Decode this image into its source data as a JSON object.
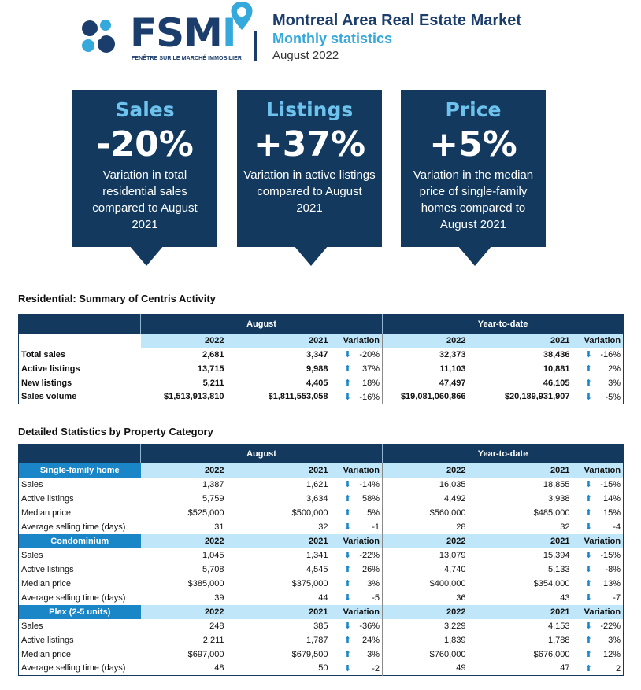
{
  "header": {
    "logo_text": "FSM",
    "logo_i": "I",
    "logo_subtitle": "FENÊTRE SUR LE MARCHÉ IMMOBILIER",
    "title": "Montreal Area Real Estate Market",
    "subtitle": "Monthly statistics",
    "date": "August 2022",
    "colors": {
      "navy": "#1b3d6b",
      "accent": "#35a8dc"
    }
  },
  "cards": [
    {
      "title": "Sales",
      "value": "-20%",
      "desc": "Variation in total residential sales compared to August 2021"
    },
    {
      "title": "Listings",
      "value": "+37%",
      "desc": "Variation in active listings compared to August 2021"
    },
    {
      "title": "Price",
      "value": "+5%",
      "desc": "Variation in the median price of single-family homes compared to August 2021"
    }
  ],
  "summary": {
    "title": "Residential: Summary of Centris Activity",
    "period_month": "August",
    "period_ytd": "Year-to-date",
    "col_2022": "2022",
    "col_2021": "2021",
    "col_var": "Variation",
    "rows": [
      {
        "label": "Total sales",
        "m22": "2,681",
        "m21": "3,347",
        "mdir": "down",
        "mvar": "-20%",
        "y22": "32,373",
        "y21": "38,436",
        "ydir": "down",
        "yvar": "-16%"
      },
      {
        "label": "Active listings",
        "m22": "13,715",
        "m21": "9,988",
        "mdir": "up",
        "mvar": "37%",
        "y22": "11,103",
        "y21": "10,881",
        "ydir": "up",
        "yvar": "2%"
      },
      {
        "label": "New listings",
        "m22": "5,211",
        "m21": "4,405",
        "mdir": "up",
        "mvar": "18%",
        "y22": "47,497",
        "y21": "46,105",
        "ydir": "up",
        "yvar": "3%"
      },
      {
        "label": "Sales volume",
        "m22": "$1,513,913,810",
        "m21": "$1,811,553,058",
        "mdir": "down",
        "mvar": "-16%",
        "y22": "$19,081,060,866",
        "y21": "$20,189,931,907",
        "ydir": "down",
        "yvar": "-5%"
      }
    ]
  },
  "detailed": {
    "title": "Detailed Statistics by Property Category",
    "period_month": "August",
    "period_ytd": "Year-to-date",
    "col_2022": "2022",
    "col_2021": "2021",
    "col_var": "Variation",
    "categories": [
      {
        "name": "Single-family home",
        "rows": [
          {
            "label": "Sales",
            "m22": "1,387",
            "m21": "1,621",
            "mdir": "down",
            "mvar": "-14%",
            "y22": "16,035",
            "y21": "18,855",
            "ydir": "down",
            "yvar": "-15%"
          },
          {
            "label": "Active listings",
            "m22": "5,759",
            "m21": "3,634",
            "mdir": "up",
            "mvar": "58%",
            "y22": "4,492",
            "y21": "3,938",
            "ydir": "up",
            "yvar": "14%"
          },
          {
            "label": "Median price",
            "m22": "$525,000",
            "m21": "$500,000",
            "mdir": "up",
            "mvar": "5%",
            "y22": "$560,000",
            "y21": "$485,000",
            "ydir": "up",
            "yvar": "15%"
          },
          {
            "label": "Average selling time (days)",
            "m22": "31",
            "m21": "32",
            "mdir": "down",
            "mvar": "-1",
            "y22": "28",
            "y21": "32",
            "ydir": "down",
            "yvar": "-4"
          }
        ]
      },
      {
        "name": "Condominium",
        "rows": [
          {
            "label": "Sales",
            "m22": "1,045",
            "m21": "1,341",
            "mdir": "down",
            "mvar": "-22%",
            "y22": "13,079",
            "y21": "15,394",
            "ydir": "down",
            "yvar": "-15%"
          },
          {
            "label": "Active listings",
            "m22": "5,708",
            "m21": "4,545",
            "mdir": "up",
            "mvar": "26%",
            "y22": "4,740",
            "y21": "5,133",
            "ydir": "down",
            "yvar": "-8%"
          },
          {
            "label": "Median price",
            "m22": "$385,000",
            "m21": "$375,000",
            "mdir": "up",
            "mvar": "3%",
            "y22": "$400,000",
            "y21": "$354,000",
            "ydir": "up",
            "yvar": "13%"
          },
          {
            "label": "Average selling time (days)",
            "m22": "39",
            "m21": "44",
            "mdir": "down",
            "mvar": "-5",
            "y22": "36",
            "y21": "43",
            "ydir": "down",
            "yvar": "-7"
          }
        ]
      },
      {
        "name": "Plex (2-5 units)",
        "rows": [
          {
            "label": "Sales",
            "m22": "248",
            "m21": "385",
            "mdir": "down",
            "mvar": "-36%",
            "y22": "3,229",
            "y21": "4,153",
            "ydir": "down",
            "yvar": "-22%"
          },
          {
            "label": "Active listings",
            "m22": "2,211",
            "m21": "1,787",
            "mdir": "up",
            "mvar": "24%",
            "y22": "1,839",
            "y21": "1,788",
            "ydir": "up",
            "yvar": "3%"
          },
          {
            "label": "Median price",
            "m22": "$697,000",
            "m21": "$679,500",
            "mdir": "up",
            "mvar": "3%",
            "y22": "$760,000",
            "y21": "$676,000",
            "ydir": "up",
            "yvar": "12%"
          },
          {
            "label": "Average selling time (days)",
            "m22": "48",
            "m21": "50",
            "mdir": "down",
            "mvar": "-2",
            "y22": "49",
            "y21": "47",
            "ydir": "up",
            "yvar": "2"
          }
        ]
      }
    ]
  }
}
